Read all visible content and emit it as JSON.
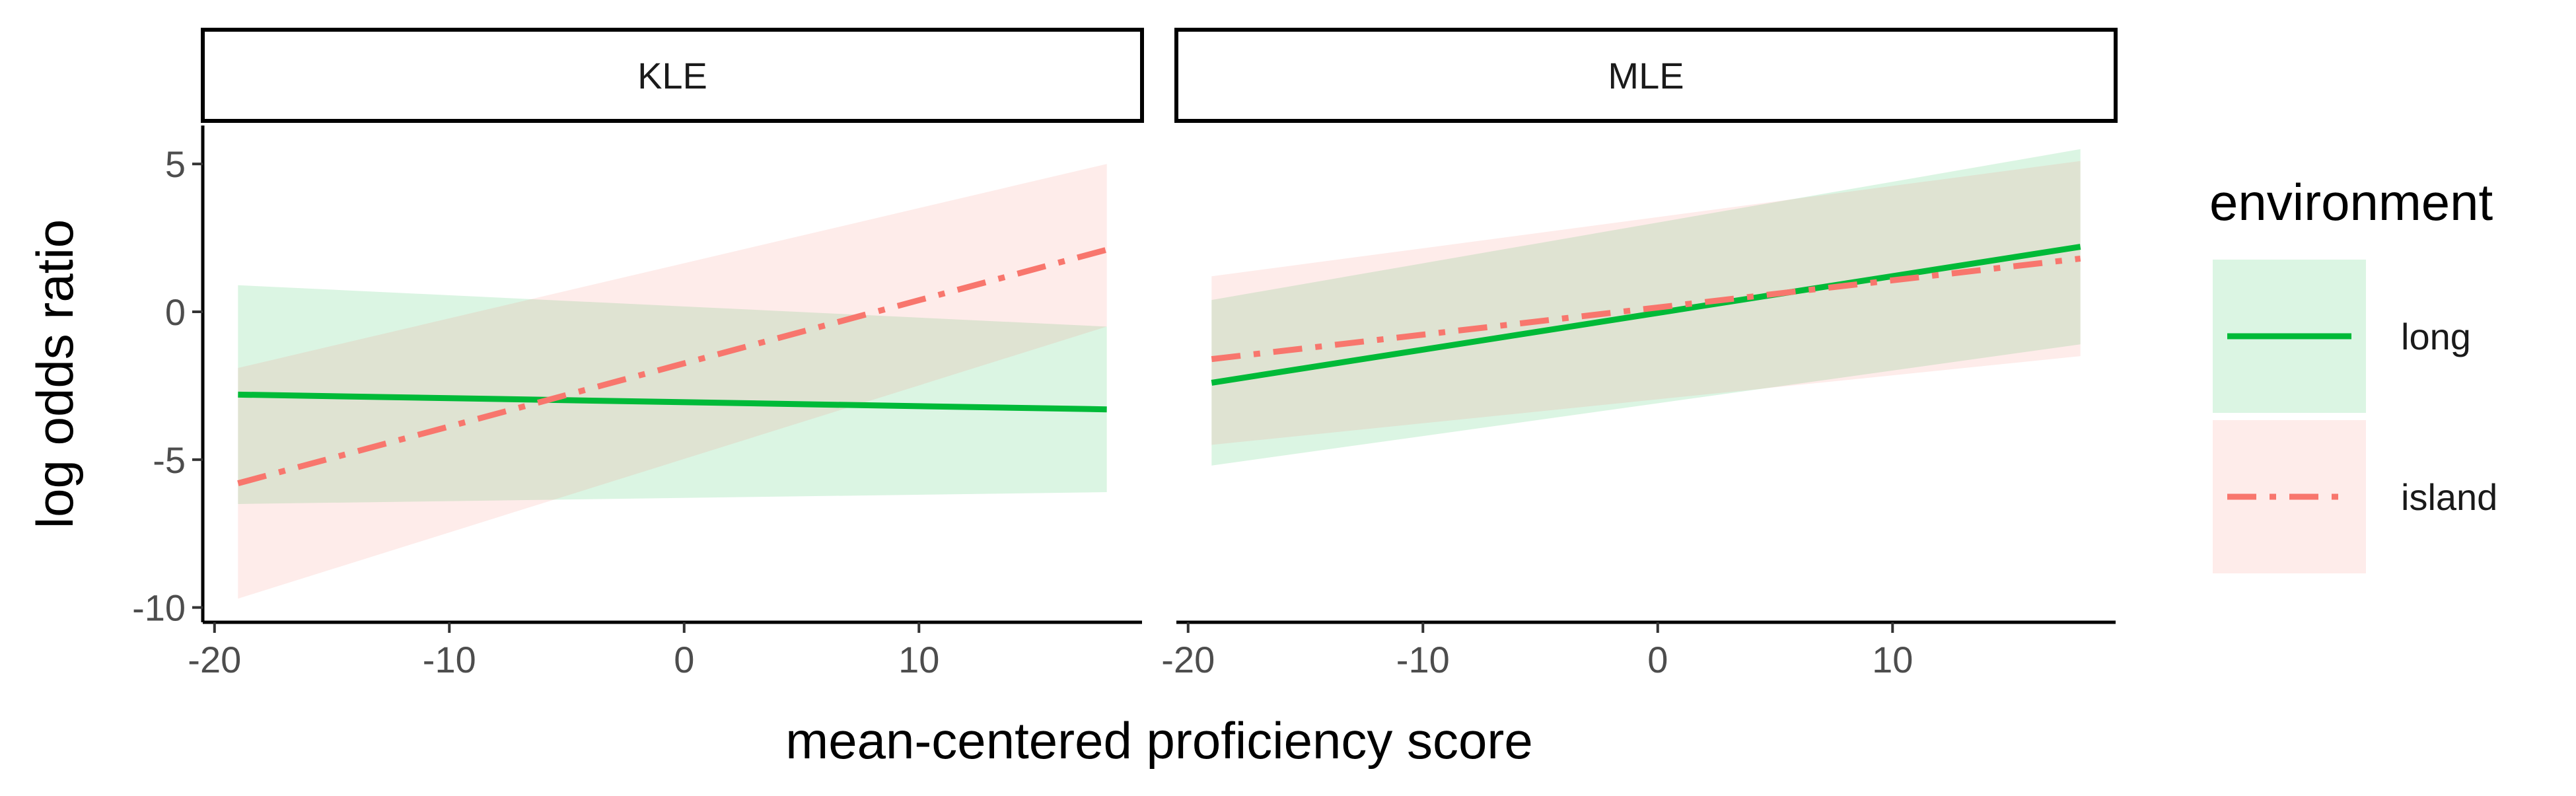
{
  "chart_data": {
    "type": "line",
    "x_label": "mean-centered proficiency score",
    "y_label": "log odds ratio",
    "x_ticks": [
      -20,
      -10,
      0,
      10
    ],
    "y_ticks": [
      5,
      0,
      -5,
      -10
    ],
    "xlim": [
      -20.5,
      19.5
    ],
    "ylim": [
      -10.5,
      6.3
    ],
    "legend": {
      "title": "environment",
      "position": "right",
      "entries": [
        {
          "label": "long",
          "color": "#00BA38",
          "linetype": "solid"
        },
        {
          "label": "island",
          "color": "#F8766D",
          "linetype": "dashdot"
        }
      ]
    },
    "panels": [
      {
        "strip": "KLE",
        "series": [
          {
            "name": "long",
            "x": [
              -19,
              18
            ],
            "y": [
              -2.8,
              -3.3
            ],
            "ribbon_lower": [
              -6.5,
              -6.1
            ],
            "ribbon_upper": [
              0.9,
              -0.5
            ]
          },
          {
            "name": "island",
            "x": [
              -19,
              18
            ],
            "y": [
              -5.8,
              2.1
            ],
            "ribbon_lower": [
              -9.7,
              -0.5
            ],
            "ribbon_upper": [
              -1.9,
              5.0
            ]
          }
        ]
      },
      {
        "strip": "MLE",
        "series": [
          {
            "name": "long",
            "x": [
              -19,
              18
            ],
            "y": [
              -2.4,
              2.2
            ],
            "ribbon_lower": [
              -5.2,
              -1.1
            ],
            "ribbon_upper": [
              0.4,
              5.5
            ]
          },
          {
            "name": "island",
            "x": [
              -19,
              18
            ],
            "y": [
              -1.6,
              1.8
            ],
            "ribbon_lower": [
              -4.5,
              -1.5
            ],
            "ribbon_upper": [
              1.2,
              5.1
            ]
          }
        ]
      }
    ]
  }
}
